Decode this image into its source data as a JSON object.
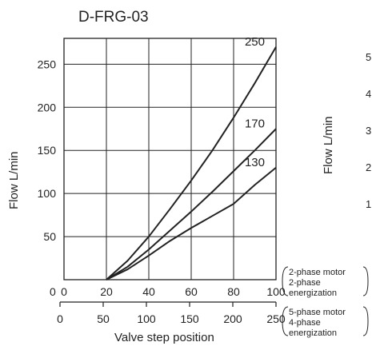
{
  "chart_data": {
    "type": "line",
    "title": "D-FRG-03",
    "xlabel": "Valve step position",
    "ylabel": "Flow  L/min",
    "xlim": [
      0,
      100
    ],
    "ylim": [
      0,
      280
    ],
    "grid": true,
    "x_ticks": [
      "0",
      "20",
      "40",
      "60",
      "80",
      "100"
    ],
    "y_ticks": [
      "50",
      "100",
      "150",
      "200",
      "250"
    ],
    "y_zero_label": "0",
    "x_ticks_5phase": [
      "0",
      "50",
      "100",
      "150",
      "200",
      "250"
    ],
    "axis_notes": [
      {
        "lines": [
          "2-phase motor",
          "2-phase",
          "energization"
        ]
      },
      {
        "lines": [
          "5-phase motor",
          "4-phase",
          "energization"
        ]
      }
    ],
    "series": [
      {
        "name": "250",
        "x": [
          20,
          30,
          40,
          50,
          60,
          70,
          80,
          90,
          100
        ],
        "y": [
          0,
          22,
          50,
          82,
          115,
          150,
          188,
          228,
          270
        ]
      },
      {
        "name": "170",
        "x": [
          20,
          30,
          40,
          50,
          60,
          70,
          80,
          90,
          100
        ],
        "y": [
          0,
          15,
          35,
          57,
          79,
          102,
          126,
          150,
          175
        ]
      },
      {
        "name": "130",
        "x": [
          20,
          30,
          40,
          50,
          60,
          70,
          80,
          90,
          100
        ],
        "y": [
          0,
          12,
          28,
          45,
          60,
          74,
          88,
          110,
          130
        ]
      }
    ],
    "partial_right_ticks": [
      "5",
      "4",
      "3",
      "2",
      "1"
    ],
    "partial_right_ylabel": "Flow  L/min"
  }
}
